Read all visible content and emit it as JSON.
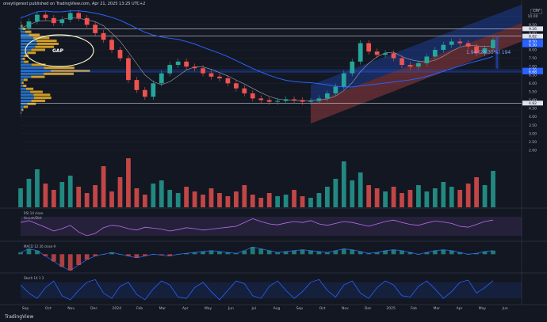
{
  "header": {
    "publisher": "oneytigerest published on TradingView.com, Apr 21, 2025 13:25 UTC+2"
  },
  "currency_button": "CRY",
  "footer_logo": "TradingView",
  "annotations": {
    "gap_label": "GAP",
    "measure_label": "1.94 (28.35%) 194"
  },
  "indicator_labels": {
    "rsi": "RSI 14 close",
    "acc_dist": "Accum/Dist",
    "macd": "MACD 12 26 close 9",
    "stoch": "Stoch 14 1 3"
  },
  "colors": {
    "background": "#131722",
    "up": "#26a69a",
    "down": "#ef5350",
    "channel_upper_fill": "#2962ff",
    "channel_lower_fill": "#ef5350",
    "ma_long": "#2962ff",
    "ma_short": "#9aa3b5",
    "volume_profile": "#f0b429",
    "volume_profile_alt": "#2e8ef5",
    "rsi_line": "#b86cf0",
    "price_label": "#ffffff"
  },
  "chart_data": [
    {
      "id": "price",
      "type": "line",
      "x_ticks": [
        "Sep",
        "Oct",
        "Nov",
        "Dec",
        "2024",
        "Feb",
        "Mar",
        "Apr",
        "May",
        "Jun",
        "Jul",
        "Aug",
        "Sep",
        "Oct",
        "Nov",
        "Dec",
        "2025",
        "Feb",
        "Mar",
        "Apr",
        "May",
        "Jun"
      ],
      "y_ticks": [
        2.0,
        2.5,
        3.0,
        3.5,
        4.0,
        4.5,
        5.0,
        5.5,
        6.0,
        6.5,
        7.0,
        7.5,
        8.0,
        8.5,
        9.0,
        9.5,
        10.0
      ],
      "ylim": [
        2.0,
        10.6
      ],
      "price_labels": [
        9.26,
        8.82,
        8.5,
        8.3,
        6.79,
        6.68,
        4.82
      ],
      "horizontal_levels": [
        9.26,
        8.82,
        6.79,
        6.68,
        4.82
      ],
      "series": [
        {
          "values": [
            9.3,
            9.7,
            10.1,
            9.9,
            9.6,
            9.8,
            10.2,
            9.9,
            9.5,
            9.0,
            8.6,
            8.0,
            7.5,
            6.2,
            5.6,
            5.2,
            6.0,
            6.6,
            7.1,
            7.3,
            7.0,
            6.9,
            6.6,
            6.4,
            6.3,
            6.0,
            5.7,
            5.4,
            5.1,
            5.0,
            4.9,
            4.95,
            5.05,
            5.0,
            4.9,
            4.95,
            5.1,
            5.4,
            5.8,
            6.6,
            7.3,
            8.4,
            7.9,
            7.7,
            7.8,
            7.5,
            7.1,
            7.0,
            7.2,
            7.6,
            8.0,
            8.3,
            8.5,
            8.4,
            8.2,
            7.8,
            8.1,
            8.6
          ]
        }
      ]
    },
    {
      "id": "volume",
      "type": "bar",
      "values": [
        1.2,
        1.8,
        2.4,
        1.5,
        1.1,
        1.6,
        2.0,
        1.3,
        0.9,
        1.4,
        2.6,
        1.0,
        1.9,
        3.1,
        1.2,
        0.8,
        1.5,
        1.7,
        1.1,
        0.9,
        1.3,
        1.0,
        0.8,
        1.2,
        0.9,
        0.7,
        1.0,
        1.4,
        0.8,
        0.6,
        0.9,
        0.7,
        0.8,
        1.1,
        0.7,
        0.6,
        0.9,
        1.3,
        1.8,
        2.9,
        1.7,
        2.2,
        1.4,
        1.2,
        1.0,
        1.3,
        0.9,
        1.1,
        1.4,
        1.0,
        1.2,
        1.6,
        1.3,
        1.1,
        1.5,
        1.9,
        1.4,
        2.3
      ]
    },
    {
      "id": "rsi",
      "type": "line",
      "values": [
        58,
        62,
        55,
        48,
        40,
        45,
        52,
        38,
        30,
        35,
        47,
        52,
        50,
        45,
        42,
        48,
        46,
        44,
        40,
        43,
        47,
        45,
        42,
        44,
        46,
        48,
        50,
        58,
        66,
        60,
        55,
        53,
        57,
        60,
        58,
        62,
        55,
        52,
        56,
        60,
        58,
        54,
        50,
        55,
        60,
        63,
        58,
        54,
        52,
        57,
        61,
        59,
        56,
        50,
        48,
        54,
        60,
        63
      ]
    },
    {
      "id": "macd",
      "type": "line",
      "values": [
        0.1,
        0.3,
        0.2,
        -0.1,
        -0.4,
        -0.7,
        -0.9,
        -0.6,
        -0.3,
        -0.1,
        0.0,
        0.1,
        0.0,
        -0.1,
        -0.2,
        -0.1,
        0.0,
        -0.05,
        -0.1,
        0.0,
        0.05,
        0.1,
        0.15,
        0.2,
        0.15,
        0.1,
        0.05,
        0.2,
        0.4,
        0.3,
        0.2,
        0.1,
        0.15,
        0.2,
        0.25,
        0.2,
        0.15,
        0.1,
        0.2,
        0.3,
        0.25,
        0.15,
        0.05,
        0.1,
        0.2,
        0.25,
        0.2,
        0.1,
        0.0,
        0.1,
        0.2,
        0.25,
        0.2,
        0.1,
        0.0,
        0.05,
        0.15,
        0.2
      ]
    },
    {
      "id": "stoch",
      "type": "line",
      "values": [
        70,
        40,
        20,
        60,
        85,
        30,
        15,
        50,
        80,
        90,
        40,
        20,
        65,
        80,
        35,
        15,
        55,
        85,
        70,
        25,
        20,
        60,
        80,
        45,
        15,
        50,
        85,
        75,
        30,
        20,
        65,
        85,
        50,
        20,
        45,
        80,
        90,
        50,
        25,
        70,
        85,
        40,
        20,
        60,
        85,
        70,
        30,
        25,
        65,
        85,
        55,
        20,
        45,
        80,
        88,
        40,
        60,
        86
      ]
    }
  ]
}
